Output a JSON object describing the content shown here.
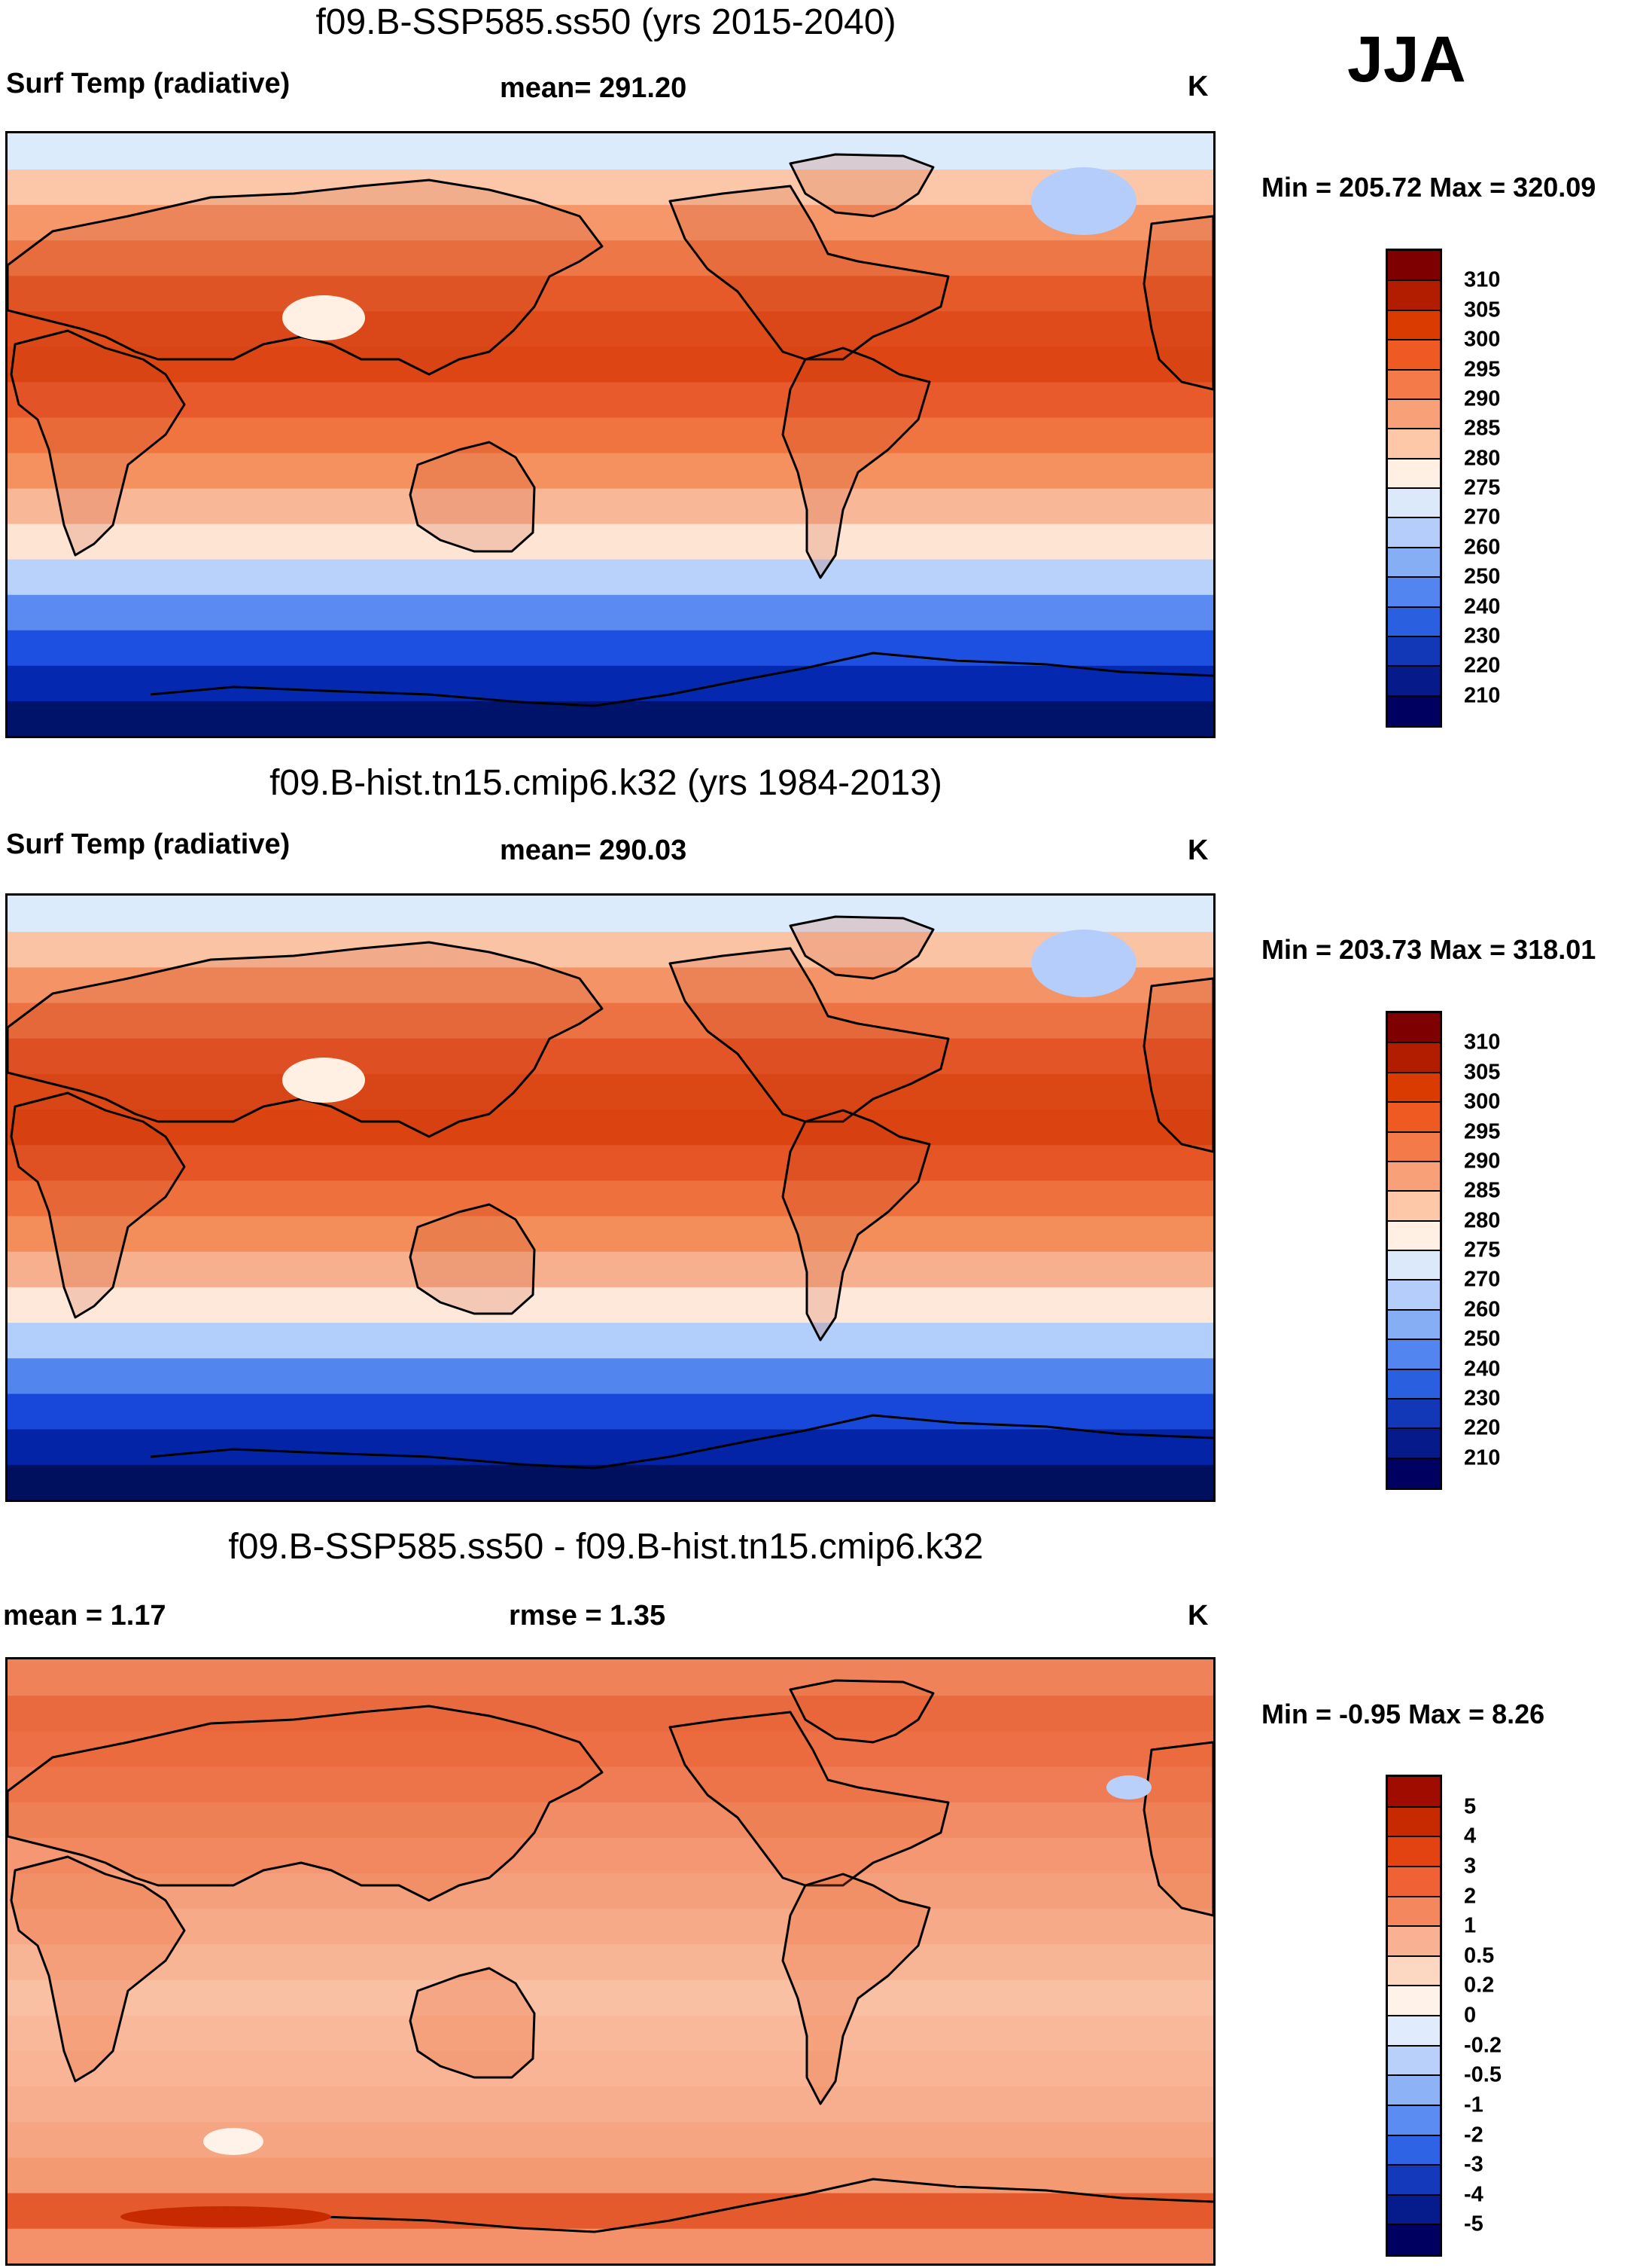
{
  "season": "JJA",
  "panels": [
    {
      "title": "f09.B-SSP585.ss50 (yrs 2015-2040)",
      "left_label": "Surf Temp (radiative)",
      "center_label": "mean= 291.20",
      "units": "K",
      "minmax": "Min = 205.72 Max = 320.09",
      "colorbar": {
        "labels": [
          "310",
          "305",
          "300",
          "295",
          "290",
          "285",
          "280",
          "275",
          "270",
          "260",
          "250",
          "240",
          "230",
          "220",
          "210"
        ],
        "colors": [
          "#7f0000",
          "#b21d00",
          "#d93b00",
          "#ef5a22",
          "#f47a4a",
          "#f8a179",
          "#fcc8a8",
          "#fff0e3",
          "#dce9fb",
          "#b5cdfa",
          "#86aef5",
          "#5285f0",
          "#2a5fe0",
          "#1238b8",
          "#061a8a",
          "#000060"
        ]
      },
      "zonal_bands": [
        "#00136b",
        "#0528b0",
        "#1d4fe0",
        "#5b8af0",
        "#b8d2fb",
        "#fde4d3",
        "#f8b796",
        "#f4915f",
        "#ef7440",
        "#e85a2b",
        "#dd4614",
        "#df4b1a",
        "#e55a28",
        "#ee7747",
        "#f59769",
        "#fbc7a8",
        "#dcebfb"
      ]
    },
    {
      "title": "f09.B-hist.tn15.cmip6.k32 (yrs 1984-2013)",
      "left_label": "Surf Temp (radiative)",
      "center_label": "mean= 290.03",
      "units": "K",
      "minmax": "Min = 203.73 Max = 318.01",
      "colorbar": {
        "labels": [
          "310",
          "305",
          "300",
          "295",
          "290",
          "285",
          "280",
          "275",
          "270",
          "260",
          "250",
          "240",
          "230",
          "220",
          "210"
        ],
        "colors": [
          "#7f0000",
          "#b21d00",
          "#d93b00",
          "#ef5a22",
          "#f47a4a",
          "#f8a179",
          "#fcc8a8",
          "#fff0e3",
          "#dce9fb",
          "#b5cdfa",
          "#86aef5",
          "#5285f0",
          "#2a5fe0",
          "#1238b8",
          "#061a8a",
          "#000060"
        ]
      },
      "zonal_bands": [
        "#000f5e",
        "#0424a8",
        "#1848da",
        "#5285ee",
        "#b2cefa",
        "#fde8da",
        "#f7b08e",
        "#f38d5a",
        "#ee703c",
        "#e55526",
        "#db4311",
        "#dc4716",
        "#e35426",
        "#ec7243",
        "#f49366",
        "#fac3a4",
        "#dcebfb"
      ]
    },
    {
      "title": "f09.B-SSP585.ss50 - f09.B-hist.tn15.cmip6.k32",
      "left_label": "mean =   1.17",
      "center_label": "rmse =   1.35",
      "units": "K",
      "minmax": "Min =  -0.95 Max =   8.26",
      "colorbar": {
        "labels": [
          "5",
          "4",
          "3",
          "2",
          "1",
          "0.5",
          "0.2",
          "0",
          "-0.2",
          "-0.5",
          "-1",
          "-2",
          "-3",
          "-4",
          "-5"
        ],
        "colors": [
          "#a00d00",
          "#c72a00",
          "#e24310",
          "#f06236",
          "#f5875f",
          "#f9b194",
          "#fcd8c2",
          "#fff2e8",
          "#e0ecfb",
          "#b9d1fa",
          "#8db3f6",
          "#5b8cf2",
          "#2d63e4",
          "#1439bb",
          "#061c8c",
          "#000060"
        ]
      },
      "zonal_bands": [
        "#f4916a",
        "#e45a2c",
        "#f39a72",
        "#f6a583",
        "#f7ae8e",
        "#f8b494",
        "#f8b899",
        "#fac0a4",
        "#f8b596",
        "#f7aa88",
        "#f5a07c",
        "#f49772",
        "#f18c66",
        "#ef7c54",
        "#ec6f46",
        "#ea6a40",
        "#f0825a"
      ]
    }
  ]
}
